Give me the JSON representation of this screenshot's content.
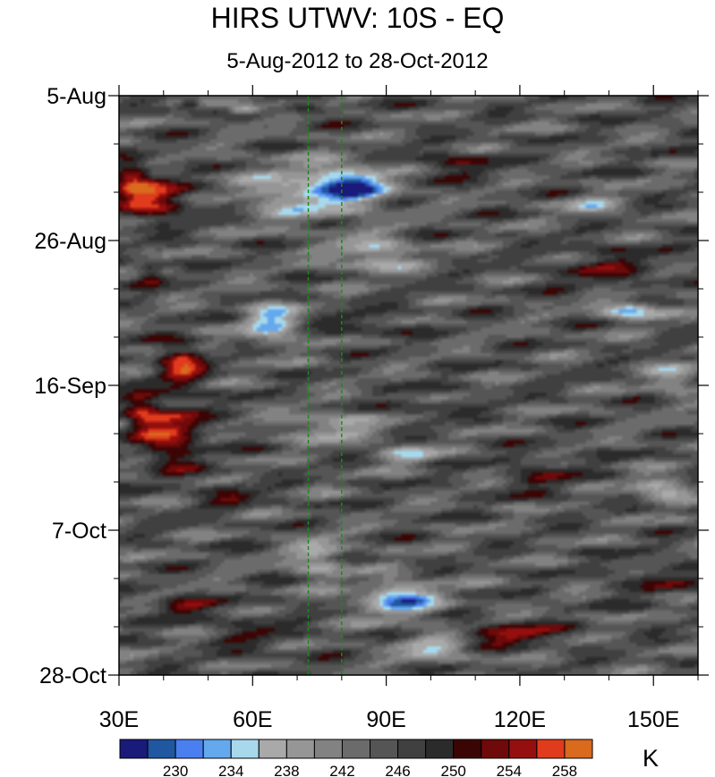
{
  "chart_data": {
    "type": "heatmap",
    "title": "HIRS UTWV: 10S - EQ",
    "subtitle": "5-Aug-2012 to 28-Oct-2012",
    "x_axis": {
      "range": [
        30,
        160
      ],
      "tick_values": [
        30,
        60,
        90,
        120,
        150
      ],
      "tick_labels": [
        "30E",
        "60E",
        "90E",
        "120E",
        "150E"
      ],
      "minor_step": 10
    },
    "y_axis": {
      "range_days": [
        0,
        84
      ],
      "tick_values": [
        0,
        21,
        42,
        63,
        84
      ],
      "tick_labels": [
        "5-Aug",
        "26-Aug",
        "16-Sep",
        "7-Oct",
        "28-Oct"
      ],
      "minor_step_days": 7,
      "direction": "time increases downward"
    },
    "reference_lines_lon": [
      72.5,
      80
    ],
    "colorbar": {
      "units": "K",
      "levels": [
        228,
        230,
        232,
        234,
        236,
        238,
        240,
        242,
        244,
        246,
        248,
        250,
        252,
        254,
        256,
        258
      ],
      "label_values": [
        230,
        234,
        238,
        242,
        246,
        250,
        254,
        258
      ],
      "label_text": [
        "230",
        "234",
        "238",
        "242",
        "246",
        "250",
        "254",
        "258"
      ],
      "colors": [
        "#1a1a7a",
        "#1f57a0",
        "#4a7ff0",
        "#64a8ee",
        "#a8d8ec",
        "#a9a9a9",
        "#969696",
        "#828282",
        "#6b6b6b",
        "#555555",
        "#404040",
        "#2b2b2b",
        "#3c0505",
        "#6e0a0a",
        "#960f0f",
        "#e03b1c",
        "#d96a1e"
      ]
    },
    "features": [
      {
        "kind": "warm",
        "lon": 38,
        "day": 15,
        "value": 256,
        "rlon": 8,
        "rday": 3
      },
      {
        "kind": "warm",
        "lon": 33,
        "day": 12,
        "value": 254,
        "rlon": 4,
        "rday": 2.5
      },
      {
        "kind": "warm",
        "lon": 44,
        "day": 39,
        "value": 256,
        "rlon": 5,
        "rday": 3
      },
      {
        "kind": "warm",
        "lon": 42,
        "day": 49,
        "value": 255,
        "rlon": 7,
        "rday": 5
      },
      {
        "kind": "warm",
        "lon": 35,
        "day": 46,
        "value": 253,
        "rlon": 4,
        "rday": 3
      },
      {
        "kind": "warm",
        "lon": 44,
        "day": 74,
        "value": 254,
        "rlon": 6,
        "rday": 1.3
      },
      {
        "kind": "warm",
        "lon": 118,
        "day": 78,
        "value": 256,
        "rlon": 10,
        "rday": 1.3
      },
      {
        "kind": "warm",
        "lon": 37,
        "day": 26,
        "value": 253,
        "rlon": 3,
        "rday": 1.5
      },
      {
        "kind": "warm",
        "lon": 46,
        "day": 1,
        "value": 253,
        "rlon": 2.5,
        "rday": 1
      },
      {
        "kind": "warm",
        "lon": 72,
        "day": 2,
        "value": 252,
        "rlon": 4,
        "rday": 0.8
      },
      {
        "kind": "dark",
        "lon": 105,
        "day": 10,
        "value": 250,
        "rlon": 10,
        "rday": 2
      },
      {
        "kind": "dark",
        "lon": 140,
        "day": 25,
        "value": 250,
        "rlon": 12,
        "rday": 3
      },
      {
        "kind": "dark",
        "lon": 55,
        "day": 58,
        "value": 250,
        "rlon": 6,
        "rday": 2
      },
      {
        "kind": "dark",
        "lon": 85,
        "day": 33,
        "value": 249,
        "rlon": 8,
        "rday": 2
      },
      {
        "kind": "dark",
        "lon": 125,
        "day": 55,
        "value": 249,
        "rlon": 10,
        "rday": 3
      },
      {
        "kind": "dark",
        "lon": 150,
        "day": 70,
        "value": 249,
        "rlon": 8,
        "rday": 3
      },
      {
        "kind": "dark",
        "lon": 60,
        "day": 78,
        "value": 249,
        "rlon": 8,
        "rday": 3
      },
      {
        "kind": "dark",
        "lon": 100,
        "day": 45,
        "value": 248,
        "rlon": 8,
        "rday": 2
      },
      {
        "kind": "moist",
        "lon": 83,
        "day": 13,
        "value": 232,
        "rlon": 8,
        "rday": 2.5
      },
      {
        "kind": "moist",
        "lon": 72,
        "day": 14,
        "value": 236,
        "rlon": 14,
        "rday": 4
      },
      {
        "kind": "moist",
        "lon": 64,
        "day": 33,
        "value": 234,
        "rlon": 6,
        "rday": 3
      },
      {
        "kind": "moist",
        "lon": 93,
        "day": 73,
        "value": 232,
        "rlon": 9,
        "rday": 2.5
      },
      {
        "kind": "moist",
        "lon": 145,
        "day": 31,
        "value": 233,
        "rlon": 7,
        "rday": 1.3
      },
      {
        "kind": "moist",
        "lon": 58,
        "day": 2,
        "value": 234,
        "rlon": 4,
        "rday": 0.8
      },
      {
        "kind": "moist",
        "lon": 87,
        "day": 23,
        "value": 236,
        "rlon": 9,
        "rday": 2.5
      },
      {
        "kind": "moist",
        "lon": 77,
        "day": 48,
        "value": 237,
        "rlon": 10,
        "rday": 2
      },
      {
        "kind": "moist",
        "lon": 95,
        "day": 52,
        "value": 236,
        "rlon": 6,
        "rday": 1.3
      },
      {
        "kind": "moist",
        "lon": 75,
        "day": 67,
        "value": 237,
        "rlon": 6,
        "rday": 3
      },
      {
        "kind": "moist",
        "lon": 152,
        "day": 57,
        "value": 236,
        "rlon": 7,
        "rday": 1.6
      },
      {
        "kind": "moist",
        "lon": 155,
        "day": 41,
        "value": 238,
        "rlon": 6,
        "rday": 2
      },
      {
        "kind": "moist",
        "lon": 136,
        "day": 16,
        "value": 238,
        "rlon": 6,
        "rday": 1.5
      },
      {
        "kind": "moist",
        "lon": 100,
        "day": 80,
        "value": 237,
        "rlon": 8,
        "rday": 2
      }
    ]
  }
}
